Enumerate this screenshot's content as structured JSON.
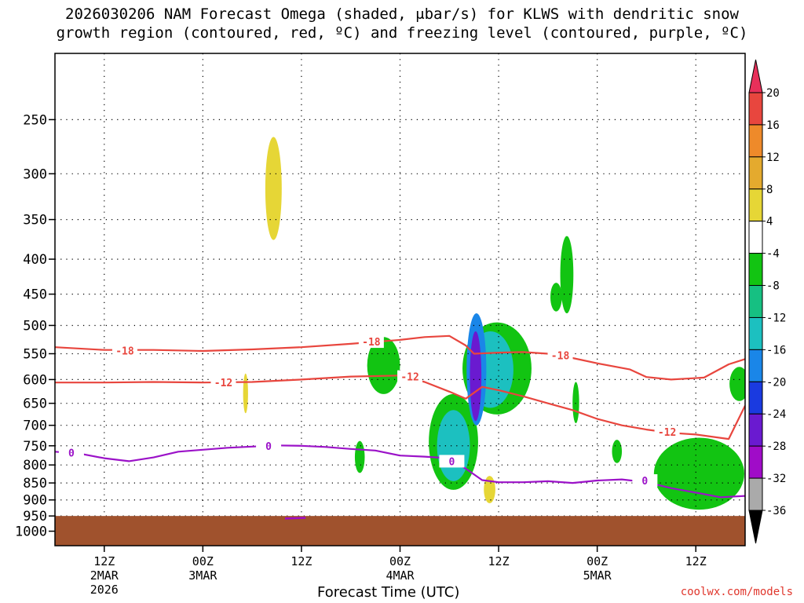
{
  "title_line1": "2026030206 NAM Forecast Omega (shaded, μbar/s) for KLWS with dendritic snow",
  "title_line2": "growth region (contoured, red, ºC) and freezing level (contoured, purple, ºC)",
  "credit": "coolwx.com/models",
  "chart_data": {
    "type": "heatmap",
    "title": "2026030206 NAM Forecast Omega (shaded, μbar/s) for KLWS with dendritic snow growth region (contoured, red, ºC) and freezing level (contoured, purple, ºC)",
    "xlabel": "Forecast Time (UTC)",
    "ylabel": "",
    "x_range_hours": [
      0,
      84
    ],
    "y_axis": {
      "scale": "log-pressure",
      "range_hPa": [
        1050,
        200
      ],
      "reversed": true
    },
    "y_ticks": [
      250,
      300,
      350,
      400,
      450,
      500,
      550,
      600,
      650,
      700,
      750,
      800,
      850,
      900,
      950,
      1000
    ],
    "x_ticks": [
      {
        "hour": 6,
        "lines": [
          "12Z",
          "2MAR",
          "2026"
        ]
      },
      {
        "hour": 18,
        "lines": [
          "00Z",
          "3MAR"
        ]
      },
      {
        "hour": 30,
        "lines": [
          "12Z"
        ]
      },
      {
        "hour": 42,
        "lines": [
          "00Z",
          "4MAR"
        ]
      },
      {
        "hour": 54,
        "lines": [
          "12Z"
        ]
      },
      {
        "hour": 66,
        "lines": [
          "00Z",
          "5MAR"
        ]
      },
      {
        "hour": 78,
        "lines": [
          "12Z"
        ]
      }
    ],
    "grid": true,
    "colorbar": {
      "labels": [
        "20",
        "16",
        "12",
        "8",
        "4",
        "-4",
        "-8",
        "-12",
        "-16",
        "-20",
        "-24",
        "-28",
        "-32",
        "-36"
      ],
      "colors": [
        "#e8305a",
        "#e8463e",
        "#ee8a2a",
        "#e4aa2e",
        "#e6d636",
        "#ffffff",
        "#12c412",
        "#16c082",
        "#1cc0c0",
        "#1a86e8",
        "#1a3ae0",
        "#6a1ad0",
        "#a00cc8",
        "#aaaaaa",
        "#000000"
      ]
    },
    "contours_red": [
      {
        "label": "-18",
        "points": [
          [
            0,
            538
          ],
          [
            6,
            543
          ],
          [
            12,
            543
          ],
          [
            18,
            545
          ],
          [
            24,
            542
          ],
          [
            30,
            538
          ],
          [
            36,
            532
          ],
          [
            42,
            525
          ],
          [
            45,
            520
          ],
          [
            48,
            518
          ],
          [
            50,
            535
          ],
          [
            51,
            550
          ],
          [
            54,
            548
          ],
          [
            57,
            547
          ],
          [
            60,
            550
          ],
          [
            63,
            558
          ],
          [
            66,
            568
          ],
          [
            70,
            580
          ],
          [
            72,
            595
          ],
          [
            75,
            600
          ],
          [
            79,
            596
          ],
          [
            82,
            570
          ],
          [
            84,
            560
          ]
        ]
      },
      {
        "label": "-12",
        "points": [
          [
            0,
            606
          ],
          [
            6,
            606
          ],
          [
            12,
            605
          ],
          [
            18,
            606
          ],
          [
            24,
            605
          ],
          [
            30,
            600
          ],
          [
            36,
            594
          ],
          [
            42,
            592
          ],
          [
            45,
            605
          ],
          [
            48,
            625
          ],
          [
            50,
            640
          ],
          [
            52,
            615
          ],
          [
            54,
            622
          ],
          [
            57,
            635
          ],
          [
            60,
            650
          ],
          [
            63,
            665
          ],
          [
            66,
            685
          ],
          [
            69,
            700
          ],
          [
            72,
            710
          ],
          [
            75,
            718
          ],
          [
            78,
            722
          ],
          [
            82,
            733
          ],
          [
            84,
            655
          ]
        ]
      }
    ],
    "contours_purple": [
      {
        "label": "0",
        "points": [
          [
            0,
            765
          ],
          [
            3,
            770
          ],
          [
            6,
            782
          ],
          [
            9,
            790
          ],
          [
            12,
            780
          ],
          [
            15,
            765
          ],
          [
            18,
            760
          ],
          [
            21,
            755
          ],
          [
            24,
            752
          ],
          [
            27,
            749
          ],
          [
            30,
            750
          ],
          [
            33,
            753
          ],
          [
            36,
            758
          ],
          [
            39,
            762
          ],
          [
            42,
            775
          ],
          [
            45,
            778
          ],
          [
            48,
            782
          ],
          [
            50,
            810
          ],
          [
            52,
            842
          ],
          [
            54,
            848
          ],
          [
            57,
            848
          ],
          [
            60,
            845
          ],
          [
            63,
            850
          ],
          [
            66,
            843
          ],
          [
            69,
            840
          ],
          [
            72,
            848
          ],
          [
            75,
            865
          ],
          [
            78,
            878
          ],
          [
            81,
            892
          ],
          [
            84,
            888
          ]
        ]
      }
    ],
    "ground": {
      "pressure_top_hPa": 950,
      "color": "#a0522d"
    },
    "omega_regions": [
      {
        "value": 6,
        "center": [
          26.6,
          320
        ],
        "radius": [
          1.0,
          55
        ]
      },
      {
        "value": 6,
        "center": [
          23.2,
          630
        ],
        "radius": [
          0.3,
          42
        ]
      },
      {
        "value": -6,
        "center": [
          40.0,
          575
        ],
        "radius": [
          2.0,
          55
        ]
      },
      {
        "value": -6,
        "center": [
          37.1,
          780
        ],
        "radius": [
          0.6,
          42
        ]
      },
      {
        "value": -6,
        "center": [
          53.8,
          585
        ],
        "radius": [
          4.2,
          90
        ]
      },
      {
        "value": -12,
        "center": [
          53.0,
          585
        ],
        "radius": [
          2.8,
          75
        ]
      },
      {
        "value": -6,
        "center": [
          48.5,
          750
        ],
        "radius": [
          3.0,
          120
        ]
      },
      {
        "value": -14,
        "center": [
          48.5,
          755
        ],
        "radius": [
          2.0,
          90
        ]
      },
      {
        "value": -18,
        "center": [
          51.3,
          590
        ],
        "radius": [
          1.2,
          110
        ]
      },
      {
        "value": -24,
        "center": [
          51.2,
          600
        ],
        "radius": [
          0.7,
          90
        ]
      },
      {
        "value": 6,
        "center": [
          52.9,
          870
        ],
        "radius": [
          0.7,
          40
        ]
      },
      {
        "value": -6,
        "center": [
          62.3,
          425
        ],
        "radius": [
          0.8,
          55
        ]
      },
      {
        "value": -6,
        "center": [
          61.0,
          455
        ],
        "radius": [
          0.7,
          22
        ]
      },
      {
        "value": -6,
        "center": [
          63.4,
          650
        ],
        "radius": [
          0.4,
          45
        ]
      },
      {
        "value": -6,
        "center": [
          68.4,
          765
        ],
        "radius": [
          0.6,
          30
        ]
      },
      {
        "value": -6,
        "center": [
          78.4,
          830
        ],
        "radius": [
          5.5,
          100
        ]
      },
      {
        "value": -6,
        "center": [
          83.3,
          610
        ],
        "radius": [
          1.2,
          35
        ]
      }
    ]
  }
}
